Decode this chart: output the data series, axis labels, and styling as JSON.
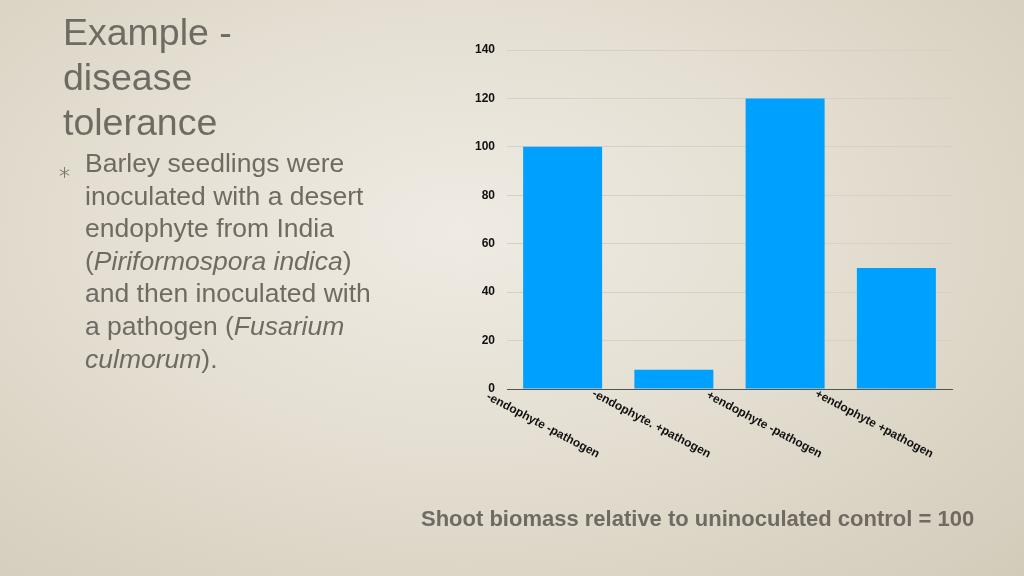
{
  "chart_data": {
    "type": "bar",
    "title": "Example - disease tolerance",
    "categories": [
      "-endophyte -pathogen",
      "-endophyte. +pathogen",
      "+endophyte -pathogen",
      "+endophyte +pathogen"
    ],
    "values": [
      100,
      8,
      120,
      50
    ],
    "color": "#00a1fe",
    "ylim": [
      0,
      140
    ],
    "yticks": [
      0,
      20,
      40,
      60,
      80,
      100,
      120,
      140
    ],
    "grid": "y",
    "legend": false,
    "annotations": [
      "Barley seedlings were inoculated with a desert endophyte from India (Piriformospora indica) and then inoculated with a pathogen (Fusarium culmorum).",
      "Shoot biomass relative to uninoculated control = 100"
    ]
  }
}
